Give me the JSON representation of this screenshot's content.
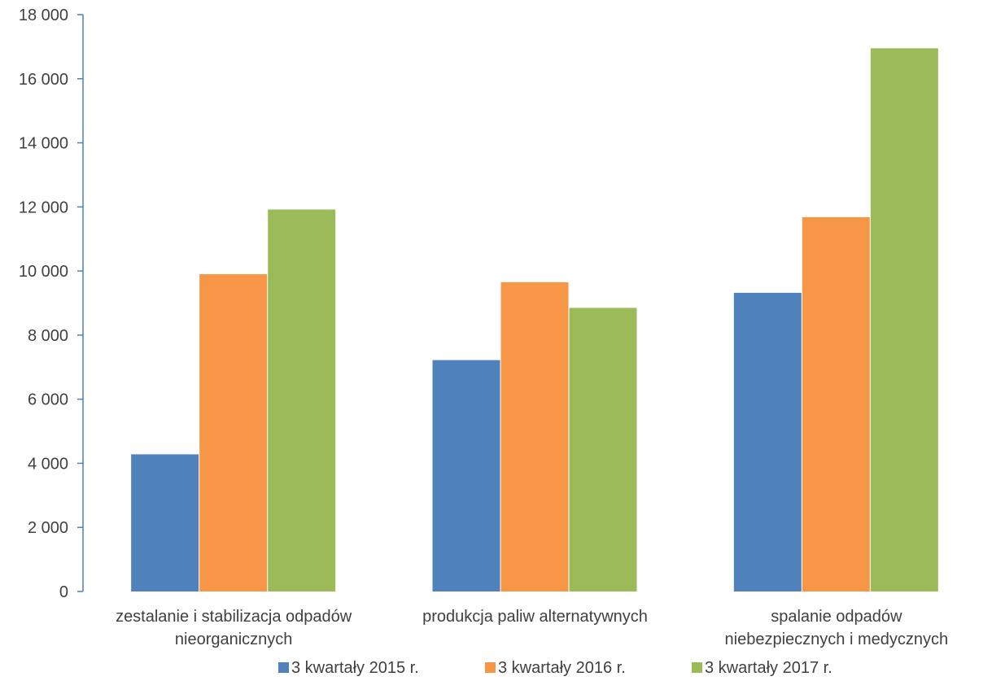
{
  "chart_data": {
    "type": "bar",
    "categories": [
      [
        "zestalanie i stabilizacja odpadów",
        "nieorganicznych"
      ],
      [
        "produkcja paliw alternatywnych"
      ],
      [
        "spalanie odpadów",
        "niebezpiecznych i medycznych"
      ]
    ],
    "series": [
      {
        "name": "3 kwartały 2015 r.",
        "values": [
          4280,
          7220,
          9320
        ],
        "color": "#4f81bd"
      },
      {
        "name": "3 kwartały 2016 r.",
        "values": [
          9900,
          9650,
          11680
        ],
        "color": "#f79646"
      },
      {
        "name": "3 kwartały 2017 r.",
        "values": [
          11920,
          8850,
          16950
        ],
        "color": "#9bbb59"
      }
    ],
    "ylim": [
      0,
      18000
    ],
    "yticks": [
      0,
      2000,
      4000,
      6000,
      8000,
      10000,
      12000,
      14000,
      16000,
      18000
    ],
    "ytick_labels": [
      "0",
      "2 000",
      "4 000",
      "6 000",
      "8 000",
      "10 000",
      "12 000",
      "14 000",
      "16 000",
      "18 000"
    ],
    "title": "",
    "xlabel": "",
    "ylabel": "",
    "grid": false,
    "legend_position": "bottom",
    "axis_color": "#4f81bd"
  }
}
